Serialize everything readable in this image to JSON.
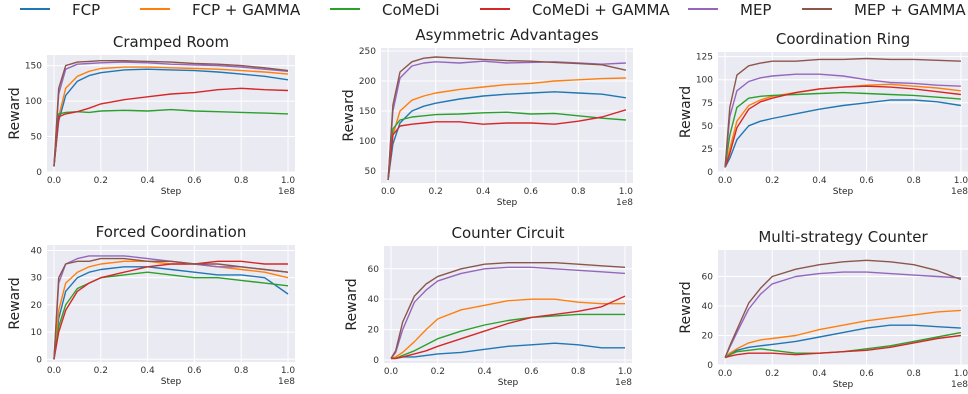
{
  "legend": {
    "entries": [
      {
        "name": "FCP",
        "color": "#1f77b4"
      },
      {
        "name": "FCP + GAMMA",
        "color": "#ff7f0e"
      },
      {
        "name": "CoMeDi",
        "color": "#2ca02c"
      },
      {
        "name": "CoMeDi + GAMMA",
        "color": "#d62728"
      },
      {
        "name": "MEP",
        "color": "#9467bd"
      },
      {
        "name": "MEP + GAMMA",
        "color": "#8c564b"
      }
    ]
  },
  "chart_data": [
    {
      "type": "line",
      "title": "Cramped Room",
      "xlabel": "Step",
      "ylabel": "Reward",
      "x_exponent": "1e8",
      "xlim": [
        -0.03,
        1.03
      ],
      "ylim": [
        0,
        165
      ],
      "xticks": [
        "0.0",
        "0.2",
        "0.4",
        "0.6",
        "0.8",
        "1.0"
      ],
      "yticks": [
        "0",
        "50",
        "100",
        "150"
      ],
      "x": [
        0,
        0.02,
        0.05,
        0.1,
        0.15,
        0.2,
        0.3,
        0.4,
        0.5,
        0.6,
        0.7,
        0.8,
        0.9,
        1.0
      ],
      "series": [
        {
          "name": "FCP",
          "values": [
            8,
            72,
            108,
            128,
            136,
            140,
            144,
            145,
            144,
            143,
            141,
            138,
            135,
            130
          ]
        },
        {
          "name": "FCP + GAMMA",
          "values": [
            8,
            78,
            118,
            135,
            142,
            146,
            148,
            148,
            147,
            146,
            145,
            143,
            141,
            138
          ]
        },
        {
          "name": "CoMeDi",
          "values": [
            8,
            82,
            84,
            85,
            84,
            86,
            87,
            86,
            88,
            86,
            85,
            84,
            83,
            82
          ]
        },
        {
          "name": "CoMeDi + GAMMA",
          "values": [
            8,
            78,
            82,
            85,
            90,
            96,
            102,
            106,
            110,
            112,
            116,
            118,
            116,
            115
          ]
        },
        {
          "name": "MEP",
          "values": [
            8,
            110,
            145,
            152,
            153,
            154,
            155,
            154,
            152,
            151,
            150,
            148,
            145,
            142
          ]
        },
        {
          "name": "MEP + GAMMA",
          "values": [
            8,
            118,
            150,
            155,
            156,
            157,
            157,
            156,
            155,
            153,
            152,
            150,
            147,
            143
          ]
        }
      ]
    },
    {
      "type": "line",
      "title": "Asymmetric Advantages",
      "xlabel": "Step",
      "ylabel": "Reward",
      "x_exponent": "1e8",
      "xlim": [
        -0.03,
        1.03
      ],
      "ylim": [
        30,
        255
      ],
      "xticks": [
        "0.0",
        "0.2",
        "0.4",
        "0.6",
        "0.8",
        "1.0"
      ],
      "yticks": [
        "50",
        "100",
        "150",
        "200",
        "250"
      ],
      "x": [
        0,
        0.02,
        0.05,
        0.1,
        0.15,
        0.2,
        0.3,
        0.4,
        0.5,
        0.6,
        0.7,
        0.8,
        0.9,
        1.0
      ],
      "series": [
        {
          "name": "FCP",
          "values": [
            35,
            95,
            130,
            150,
            158,
            163,
            170,
            175,
            178,
            180,
            182,
            180,
            178,
            172
          ]
        },
        {
          "name": "FCP + GAMMA",
          "values": [
            35,
            110,
            150,
            168,
            175,
            180,
            186,
            190,
            194,
            196,
            200,
            202,
            204,
            205
          ]
        },
        {
          "name": "CoMeDi",
          "values": [
            35,
            120,
            135,
            140,
            142,
            144,
            145,
            147,
            148,
            145,
            146,
            142,
            138,
            135
          ]
        },
        {
          "name": "CoMeDi + GAMMA",
          "values": [
            35,
            110,
            125,
            128,
            130,
            132,
            132,
            128,
            130,
            130,
            128,
            133,
            140,
            152
          ]
        },
        {
          "name": "MEP",
          "values": [
            35,
            150,
            205,
            225,
            230,
            232,
            230,
            233,
            230,
            231,
            232,
            230,
            228,
            230
          ]
        },
        {
          "name": "MEP + GAMMA",
          "values": [
            35,
            160,
            215,
            232,
            238,
            240,
            238,
            236,
            234,
            233,
            231,
            229,
            227,
            218
          ]
        }
      ]
    },
    {
      "type": "line",
      "title": "Coordination Ring",
      "xlabel": "Step",
      "ylabel": "Reward",
      "x_exponent": "1e8",
      "xlim": [
        -0.03,
        1.03
      ],
      "ylim": [
        0,
        130
      ],
      "xticks": [
        "0.0",
        "0.2",
        "0.4",
        "0.6",
        "0.8",
        "1.0"
      ],
      "yticks": [
        "0",
        "25",
        "50",
        "75",
        "100",
        "125"
      ],
      "x": [
        0,
        0.02,
        0.05,
        0.1,
        0.15,
        0.2,
        0.3,
        0.4,
        0.5,
        0.6,
        0.7,
        0.8,
        0.9,
        1.0
      ],
      "series": [
        {
          "name": "FCP",
          "values": [
            5,
            15,
            35,
            50,
            55,
            58,
            63,
            68,
            72,
            75,
            78,
            78,
            76,
            72
          ]
        },
        {
          "name": "FCP + GAMMA",
          "values": [
            5,
            25,
            55,
            72,
            78,
            82,
            86,
            90,
            92,
            94,
            95,
            93,
            91,
            88
          ]
        },
        {
          "name": "CoMeDi",
          "values": [
            5,
            40,
            70,
            80,
            82,
            83,
            84,
            85,
            86,
            85,
            84,
            83,
            81,
            79
          ]
        },
        {
          "name": "CoMeDi + GAMMA",
          "values": [
            5,
            20,
            48,
            68,
            76,
            80,
            86,
            90,
            92,
            93,
            92,
            90,
            87,
            84
          ]
        },
        {
          "name": "MEP",
          "values": [
            5,
            60,
            88,
            98,
            102,
            104,
            106,
            106,
            104,
            100,
            97,
            96,
            94,
            93
          ]
        },
        {
          "name": "MEP + GAMMA",
          "values": [
            5,
            70,
            105,
            115,
            118,
            120,
            120,
            122,
            122,
            123,
            122,
            122,
            121,
            120
          ]
        }
      ]
    },
    {
      "type": "line",
      "title": "Forced Coordination",
      "xlabel": "Step",
      "ylabel": "Reward",
      "x_exponent": "1e8",
      "xlim": [
        -0.03,
        1.03
      ],
      "ylim": [
        -1,
        42
      ],
      "xticks": [
        "0.0",
        "0.2",
        "0.4",
        "0.6",
        "0.8",
        "1.0"
      ],
      "yticks": [
        "0",
        "10",
        "20",
        "30",
        "40"
      ],
      "x": [
        0,
        0.02,
        0.05,
        0.1,
        0.15,
        0.2,
        0.3,
        0.4,
        0.5,
        0.6,
        0.7,
        0.8,
        0.9,
        1.0
      ],
      "series": [
        {
          "name": "FCP",
          "values": [
            0,
            15,
            25,
            30,
            32,
            33,
            34,
            34,
            33,
            32,
            31,
            31,
            30,
            24
          ]
        },
        {
          "name": "FCP + GAMMA",
          "values": [
            0,
            18,
            28,
            32,
            34,
            35,
            36,
            36,
            35,
            35,
            34,
            33,
            32,
            30
          ]
        },
        {
          "name": "CoMeDi",
          "values": [
            0,
            12,
            20,
            26,
            28,
            30,
            31,
            32,
            31,
            30,
            30,
            29,
            28,
            27
          ]
        },
        {
          "name": "CoMeDi + GAMMA",
          "values": [
            0,
            10,
            18,
            25,
            28,
            30,
            32,
            34,
            35,
            35,
            36,
            36,
            35,
            35
          ]
        },
        {
          "name": "MEP",
          "values": [
            0,
            28,
            35,
            37,
            38,
            38,
            38,
            37,
            36,
            35,
            34,
            34,
            33,
            32
          ]
        },
        {
          "name": "MEP + GAMMA",
          "values": [
            0,
            30,
            35,
            36,
            36,
            37,
            37,
            36,
            36,
            35,
            35,
            34,
            33,
            32
          ]
        }
      ]
    },
    {
      "type": "line",
      "title": "Counter Circuit",
      "xlabel": "Step",
      "ylabel": "Reward",
      "x_exponent": "1e8",
      "xlim": [
        -0.03,
        1.03
      ],
      "ylim": [
        -2,
        75
      ],
      "xticks": [
        "0.0",
        "0.2",
        "0.4",
        "0.6",
        "0.8",
        "1.0"
      ],
      "yticks": [
        "0",
        "20",
        "40",
        "60"
      ],
      "x": [
        0,
        0.02,
        0.05,
        0.1,
        0.15,
        0.2,
        0.3,
        0.4,
        0.5,
        0.6,
        0.7,
        0.8,
        0.9,
        1.0
      ],
      "series": [
        {
          "name": "FCP",
          "values": [
            1,
            1,
            2,
            2,
            3,
            4,
            5,
            7,
            9,
            10,
            11,
            10,
            8,
            8
          ]
        },
        {
          "name": "FCP + GAMMA",
          "values": [
            1,
            2,
            5,
            12,
            20,
            27,
            33,
            36,
            39,
            40,
            40,
            38,
            37,
            37
          ]
        },
        {
          "name": "CoMeDi",
          "values": [
            1,
            1,
            3,
            6,
            10,
            14,
            19,
            23,
            26,
            28,
            29,
            30,
            30,
            30
          ]
        },
        {
          "name": "CoMeDi + GAMMA",
          "values": [
            1,
            1,
            2,
            4,
            6,
            9,
            14,
            19,
            24,
            28,
            30,
            32,
            35,
            42
          ]
        },
        {
          "name": "MEP",
          "values": [
            1,
            5,
            20,
            38,
            46,
            52,
            57,
            60,
            61,
            61,
            60,
            59,
            58,
            57
          ]
        },
        {
          "name": "MEP + GAMMA",
          "values": [
            1,
            6,
            25,
            42,
            50,
            55,
            60,
            63,
            64,
            64,
            64,
            63,
            62,
            61
          ]
        }
      ]
    },
    {
      "type": "line",
      "title": "Multi-strategy Counter",
      "xlabel": "Step",
      "ylabel": "Reward",
      "x_exponent": "1e8",
      "xlim": [
        -0.03,
        1.03
      ],
      "ylim": [
        0,
        78
      ],
      "xticks": [
        "0.0",
        "0.2",
        "0.4",
        "0.6",
        "0.8",
        "1.0"
      ],
      "yticks": [
        "0",
        "20",
        "40",
        "60"
      ],
      "x": [
        0,
        0.02,
        0.05,
        0.1,
        0.15,
        0.2,
        0.3,
        0.4,
        0.5,
        0.6,
        0.7,
        0.8,
        0.9,
        1.0
      ],
      "series": [
        {
          "name": "FCP",
          "values": [
            5,
            8,
            10,
            12,
            13,
            14,
            16,
            19,
            22,
            25,
            27,
            27,
            26,
            25
          ]
        },
        {
          "name": "FCP + GAMMA",
          "values": [
            5,
            8,
            11,
            15,
            17,
            18,
            20,
            24,
            27,
            30,
            32,
            34,
            36,
            37
          ]
        },
        {
          "name": "CoMeDi",
          "values": [
            5,
            7,
            9,
            10,
            11,
            10,
            8,
            8,
            9,
            11,
            13,
            16,
            19,
            22
          ]
        },
        {
          "name": "CoMeDi + GAMMA",
          "values": [
            5,
            6,
            7,
            8,
            8,
            8,
            7,
            8,
            9,
            10,
            12,
            15,
            18,
            20
          ]
        },
        {
          "name": "MEP",
          "values": [
            5,
            12,
            22,
            38,
            48,
            55,
            60,
            62,
            63,
            63,
            62,
            61,
            60,
            59
          ]
        },
        {
          "name": "MEP + GAMMA",
          "values": [
            5,
            13,
            24,
            42,
            52,
            60,
            65,
            68,
            70,
            71,
            70,
            68,
            64,
            58
          ]
        }
      ]
    }
  ]
}
